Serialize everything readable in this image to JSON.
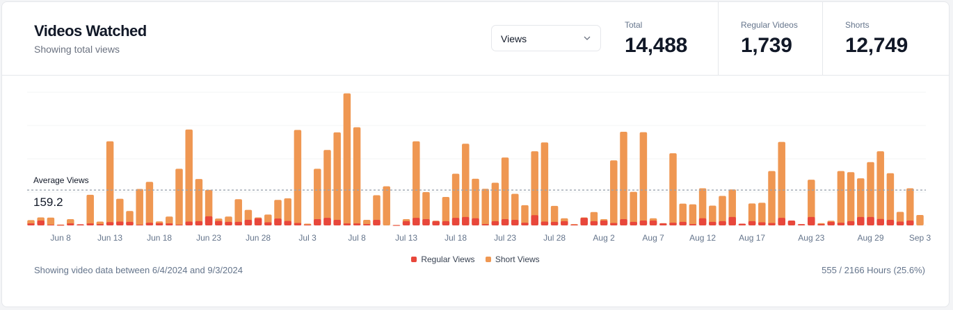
{
  "header": {
    "title": "Videos Watched",
    "subtitle": "Showing total views",
    "metric_select": {
      "value": "Views",
      "icon": "chevron-down-icon"
    },
    "stats": [
      {
        "label": "Total",
        "value": "14,488"
      },
      {
        "label": "Regular Videos",
        "value": "1,739"
      },
      {
        "label": "Shorts",
        "value": "12,749"
      }
    ]
  },
  "footer": {
    "range_text": "Showing video data between 6/4/2024 and 9/3/2024",
    "hours_text": "555 / 2166 Hours (25.6%)"
  },
  "colors": {
    "regular": "#e8473b",
    "short": "#ef9752",
    "average_line": "#9ca3af"
  },
  "chart_data": {
    "type": "bar",
    "stacked": true,
    "grid": true,
    "ylim": [
      0,
      600
    ],
    "legend_position": "bottom",
    "average": {
      "label": "Average Views",
      "value": 159.2
    },
    "x": [
      "2024-06-05",
      "2024-06-06",
      "2024-06-07",
      "2024-06-08",
      "2024-06-09",
      "2024-06-10",
      "2024-06-11",
      "2024-06-12",
      "2024-06-13",
      "2024-06-14",
      "2024-06-15",
      "2024-06-16",
      "2024-06-17",
      "2024-06-18",
      "2024-06-19",
      "2024-06-20",
      "2024-06-21",
      "2024-06-22",
      "2024-06-23",
      "2024-06-24",
      "2024-06-25",
      "2024-06-26",
      "2024-06-27",
      "2024-06-28",
      "2024-06-29",
      "2024-06-30",
      "2024-07-01",
      "2024-07-02",
      "2024-07-03",
      "2024-07-04",
      "2024-07-05",
      "2024-07-06",
      "2024-07-07",
      "2024-07-08",
      "2024-07-09",
      "2024-07-10",
      "2024-07-11",
      "2024-07-12",
      "2024-07-13",
      "2024-07-14",
      "2024-07-15",
      "2024-07-16",
      "2024-07-17",
      "2024-07-18",
      "2024-07-19",
      "2024-07-20",
      "2024-07-21",
      "2024-07-22",
      "2024-07-23",
      "2024-07-24",
      "2024-07-25",
      "2024-07-26",
      "2024-07-27",
      "2024-07-28",
      "2024-07-29",
      "2024-07-30",
      "2024-07-31",
      "2024-08-01",
      "2024-08-02",
      "2024-08-03",
      "2024-08-04",
      "2024-08-05",
      "2024-08-06",
      "2024-08-07",
      "2024-08-08",
      "2024-08-09",
      "2024-08-10",
      "2024-08-11",
      "2024-08-12",
      "2024-08-13",
      "2024-08-14",
      "2024-08-15",
      "2024-08-16",
      "2024-08-17",
      "2024-08-18",
      "2024-08-19",
      "2024-08-20",
      "2024-08-21",
      "2024-08-22",
      "2024-08-23",
      "2024-08-24",
      "2024-08-25",
      "2024-08-26",
      "2024-08-27",
      "2024-08-28",
      "2024-08-29",
      "2024-08-30",
      "2024-08-31",
      "2024-09-01",
      "2024-09-02",
      "2024-09-03"
    ],
    "tick_labels": [
      {
        "x": "2024-06-08",
        "label": "Jun 8"
      },
      {
        "x": "2024-06-13",
        "label": "Jun 13"
      },
      {
        "x": "2024-06-18",
        "label": "Jun 18"
      },
      {
        "x": "2024-06-23",
        "label": "Jun 23"
      },
      {
        "x": "2024-06-28",
        "label": "Jun 28"
      },
      {
        "x": "2024-07-03",
        "label": "Jul 3"
      },
      {
        "x": "2024-07-08",
        "label": "Jul 8"
      },
      {
        "x": "2024-07-13",
        "label": "Jul 13"
      },
      {
        "x": "2024-07-18",
        "label": "Jul 18"
      },
      {
        "x": "2024-07-23",
        "label": "Jul 23"
      },
      {
        "x": "2024-07-28",
        "label": "Jul 28"
      },
      {
        "x": "2024-08-02",
        "label": "Aug 2"
      },
      {
        "x": "2024-08-07",
        "label": "Aug 7"
      },
      {
        "x": "2024-08-12",
        "label": "Aug 12"
      },
      {
        "x": "2024-08-17",
        "label": "Aug 17"
      },
      {
        "x": "2024-08-23",
        "label": "Aug 23"
      },
      {
        "x": "2024-08-29",
        "label": "Aug 29"
      },
      {
        "x": "2024-09-03",
        "label": "Sep 3"
      }
    ],
    "series": [
      {
        "name": "Regular Views",
        "color": "#e8473b",
        "values": [
          9,
          22,
          3,
          2,
          9,
          5,
          9,
          6,
          15,
          17,
          16,
          3,
          12,
          10,
          9,
          3,
          17,
          19,
          41,
          20,
          16,
          16,
          25,
          32,
          14,
          31,
          20,
          11,
          3,
          28,
          34,
          25,
          9,
          9,
          6,
          25,
          0,
          1,
          19,
          34,
          28,
          19,
          19,
          34,
          38,
          32,
          6,
          19,
          28,
          25,
          12,
          46,
          17,
          16,
          19,
          4,
          34,
          19,
          22,
          11,
          28,
          16,
          22,
          22,
          9,
          12,
          16,
          6,
          32,
          16,
          19,
          38,
          8,
          19,
          14,
          11,
          34,
          22,
          6,
          38,
          6,
          16,
          12,
          19,
          38,
          38,
          29,
          25,
          17,
          22,
          0
        ]
      },
      {
        "name": "Short Views",
        "color": "#ef9752",
        "values": [
          15,
          14,
          32,
          2,
          19,
          0,
          129,
          11,
          364,
          103,
          49,
          161,
          184,
          8,
          31,
          252,
          415,
          190,
          119,
          11,
          24,
          102,
          45,
          4,
          35,
          84,
          102,
          419,
          5,
          227,
          306,
          394,
          586,
          433,
          19,
          111,
          176,
          1,
          9,
          345,
          122,
          2,
          109,
          199,
          330,
          178,
          159,
          173,
          278,
          117,
          79,
          288,
          357,
          72,
          13,
          2,
          2,
          41,
          6,
          282,
          394,
          135,
          398,
          10,
          1,
          313,
          82,
          89,
          135,
          73,
          114,
          124,
          0,
          80,
          88,
          234,
          342,
          0,
          0,
          168,
          4,
          5,
          233,
          221,
          174,
          247,
          305,
          210,
          44,
          145,
          47
        ]
      }
    ]
  }
}
